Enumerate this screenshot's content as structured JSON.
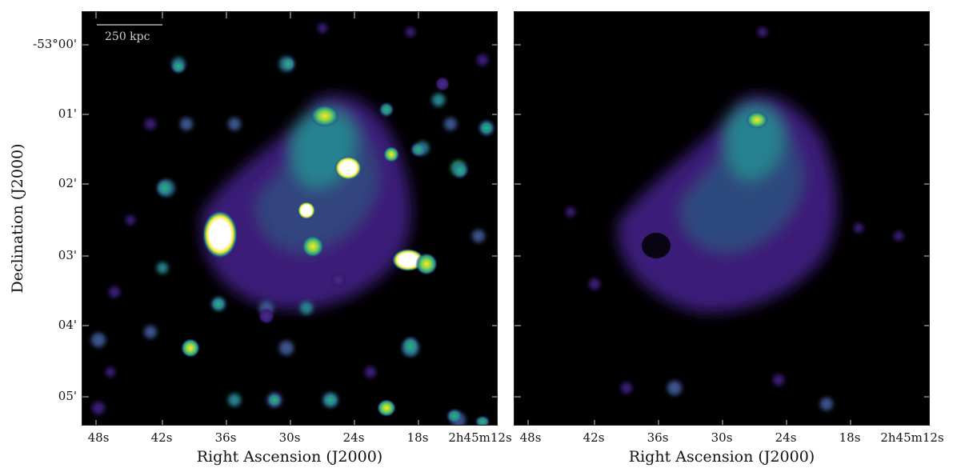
{
  "figure": {
    "panels": [
      {
        "id": "left",
        "description_visible": "radio intensity map with compact sources"
      },
      {
        "id": "right",
        "description_visible": "residual map after compact-source subtraction"
      }
    ],
    "scalebar": {
      "label": "250 kpc"
    },
    "x_axis": {
      "title": "Right Ascension (J2000)",
      "ticks": [
        "48s",
        "42s",
        "36s",
        "30s",
        "24s",
        "18s",
        "2h45m12s"
      ]
    },
    "y_axis": {
      "title": "Declination (J2000)",
      "ticks": [
        "-53°00'",
        "01'",
        "02'",
        "03'",
        "04'",
        "05'"
      ]
    },
    "colormap": "viridis-like",
    "colors": {
      "background": "#000000",
      "low": "#3b1a78",
      "mid": "#21908d",
      "high": "#fde725",
      "saturated": "#ffffff"
    }
  }
}
